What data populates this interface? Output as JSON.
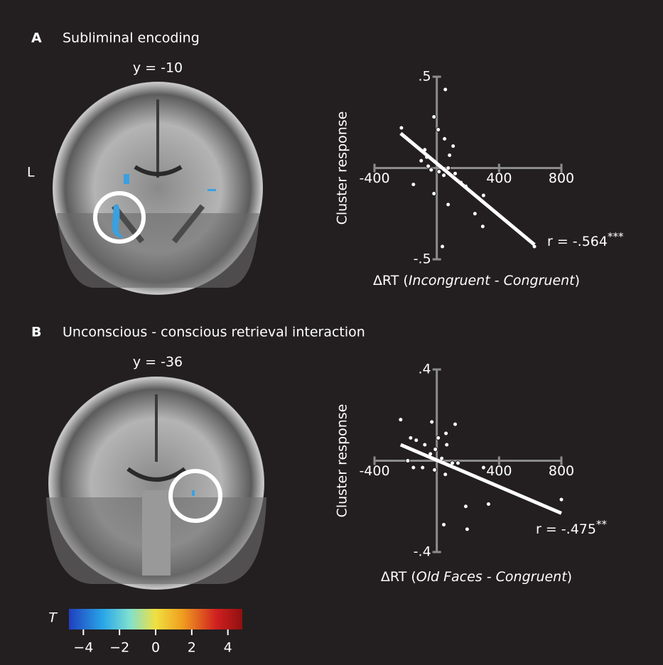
{
  "panels": [
    {
      "letter": "A",
      "title": "Subliminal encoding",
      "slice_label": "y = -10"
    },
    {
      "letter": "B",
      "title": "Unconscious - conscious retrieval interaction",
      "slice_label": "y = -36"
    }
  ],
  "side_label": "L",
  "colorbar": {
    "label": "T",
    "lim": [
      -4.8,
      4.8
    ],
    "ticks": [
      {
        "value": -4,
        "label": "−4"
      },
      {
        "value": -2,
        "label": "−2"
      },
      0,
      2,
      4
    ]
  },
  "chart_data": [
    {
      "type": "scatter",
      "ylabel": "Cluster response",
      "xlabel_prefix": "ΔRT (",
      "xlabel_italic": "Incongruent - Congruent",
      "xlabel_suffix": ")",
      "annotation": "r = -.564",
      "annotation_sup": "***",
      "xlim": [
        -400,
        800
      ],
      "ylim": [
        -0.5,
        0.5
      ],
      "xticks": [
        -400,
        400,
        800
      ],
      "yticks": [
        {
          "value": 0.5,
          "label": ".5"
        },
        {
          "value": -0.5,
          "label": "-.5"
        }
      ],
      "color": "#ffffff",
      "x": [
        -227,
        -77,
        -18,
        55,
        9,
        50,
        105,
        82,
        -64,
        -100,
        -36,
        14,
        45,
        118,
        155,
        186,
        -150,
        -18,
        73,
        300,
        245,
        295,
        36,
        627,
        -55,
        73
      ],
      "y": [
        0.22,
        0.1,
        0.28,
        0.43,
        0.21,
        0.16,
        0.12,
        0.07,
        0.06,
        0.04,
        -0.01,
        -0.02,
        -0.04,
        -0.03,
        -0.08,
        -0.1,
        -0.09,
        -0.14,
        -0.2,
        -0.15,
        -0.25,
        -0.32,
        -0.43,
        -0.43,
        0.01,
        0.0
      ],
      "fit": {
        "x": [
          -232,
          627
        ],
        "y": [
          0.19,
          -0.42
        ]
      }
    },
    {
      "type": "scatter",
      "ylabel": "Cluster response",
      "xlabel_prefix": "ΔRT (",
      "xlabel_italic": "Old Faces - Congruent",
      "xlabel_suffix": ")",
      "annotation": "r = -.475",
      "annotation_sup": "**",
      "xlim": [
        -400,
        800
      ],
      "ylim": [
        -0.4,
        0.4
      ],
      "xticks": [
        -400,
        400,
        800
      ],
      "yticks": [
        {
          "value": 0.4,
          "label": ".4"
        },
        {
          "value": -0.4,
          "label": "-.4"
        }
      ],
      "color": "#ffffff",
      "x": [
        -232,
        -168,
        -132,
        -32,
        9,
        59,
        118,
        64,
        -9,
        -41,
        32,
        100,
        136,
        -186,
        -91,
        -150,
        -14,
        55,
        300,
        355,
        332,
        186,
        45,
        195,
        800,
        -77
      ],
      "y": [
        0.18,
        0.1,
        0.09,
        0.17,
        0.1,
        0.12,
        0.16,
        0.07,
        0.05,
        0.03,
        0.01,
        -0.01,
        -0.01,
        0.0,
        -0.03,
        -0.03,
        -0.04,
        -0.06,
        -0.03,
        -0.1,
        -0.19,
        -0.2,
        -0.28,
        -0.3,
        -0.17,
        0.07
      ],
      "fit": {
        "x": [
          -232,
          800
        ],
        "y": [
          0.07,
          -0.23
        ]
      }
    }
  ]
}
